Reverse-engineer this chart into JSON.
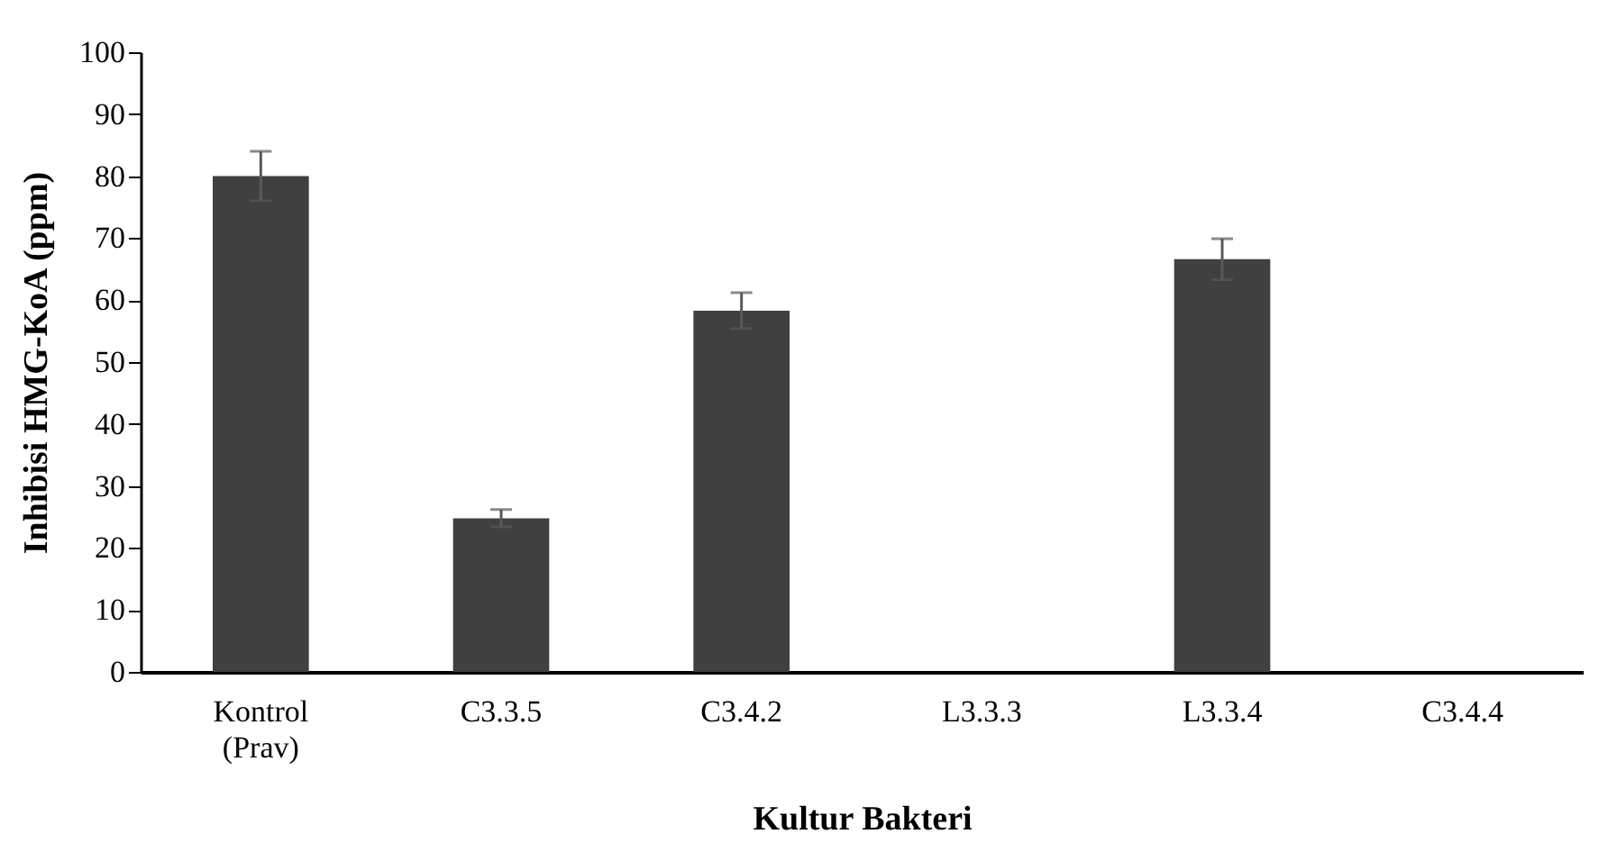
{
  "chart_data": {
    "type": "bar",
    "xlabel": "Kultur Bakteri",
    "ylabel": "Inhibisi HMG-KoA (ppm)",
    "categories": [
      "Kontrol (Prav)",
      "C3.3.5",
      "C3.4.2",
      "L3.3.3",
      "L3.3.4",
      "C3.4.4"
    ],
    "values": [
      80,
      24.8,
      58.3,
      0,
      66.6,
      0
    ],
    "errors": [
      4,
      1.4,
      2.9,
      null,
      3.3,
      null
    ],
    "color": "#404040",
    "ylim": [
      0,
      100
    ],
    "yticks": [
      0,
      10,
      20,
      30,
      40,
      50,
      60,
      70,
      80,
      90,
      100
    ],
    "grid": false
  }
}
